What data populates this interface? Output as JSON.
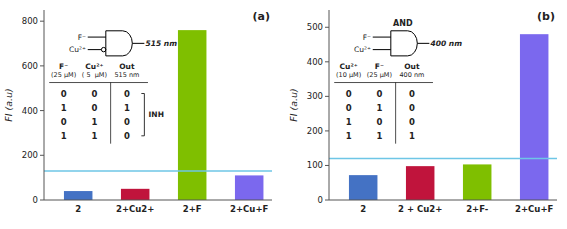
{
  "chart_data": [
    {
      "type": "bar",
      "title": "(a)",
      "categories": [
        "2",
        "2+Cu2+",
        "2+F",
        "2+Cu+F"
      ],
      "values": [
        40,
        50,
        760,
        110
      ],
      "colors": [
        "#4472C4",
        "#C0143C",
        "#7FBF00",
        "#7B68EE"
      ],
      "ylim": [
        0,
        850
      ],
      "yticks": [
        0,
        200,
        400,
        600,
        800
      ],
      "y_label": "FI (a.u)",
      "threshold": 130,
      "threshold_color": "#6EC6E6",
      "annotations": {
        "gate": {
          "inputs": [
            "F⁻",
            "Cu²⁺"
          ],
          "negated": [
            false,
            true
          ],
          "output": "515 nm"
        },
        "truth_table": {
          "columns": [
            "F⁻",
            "Cu²⁺",
            "Out"
          ],
          "units": [
            "(25 μM)",
            "( 5  μM)",
            "515 nm"
          ],
          "rows": [
            [
              0,
              0,
              0
            ],
            [
              1,
              0,
              1
            ],
            [
              0,
              1,
              0
            ],
            [
              1,
              1,
              0
            ]
          ],
          "label": "INH"
        }
      }
    },
    {
      "type": "bar",
      "title": "(b)",
      "categories": [
        "2",
        "2 + Cu2+",
        "2+F-",
        "2+Cu+F"
      ],
      "values": [
        72,
        98,
        103,
        480
      ],
      "colors": [
        "#4472C4",
        "#C0143C",
        "#7FBF00",
        "#7B68EE"
      ],
      "ylim": [
        0,
        550
      ],
      "yticks": [
        0,
        100,
        200,
        300,
        400,
        500
      ],
      "y_label": "FI (a.u)",
      "threshold": 120,
      "threshold_color": "#6EC6E6",
      "annotations": {
        "gate": {
          "label": "AND",
          "inputs": [
            "F⁻",
            "Cu²⁺"
          ],
          "negated": [
            false,
            false
          ],
          "output": "400 nm"
        },
        "truth_table": {
          "columns": [
            "Cu²⁺",
            "F⁻",
            "Out"
          ],
          "units": [
            "(10 μM)",
            "(25 μM)",
            "400 nm"
          ],
          "rows": [
            [
              0,
              0,
              0
            ],
            [
              0,
              1,
              0
            ],
            [
              1,
              0,
              0
            ],
            [
              1,
              1,
              1
            ]
          ]
        }
      }
    }
  ]
}
